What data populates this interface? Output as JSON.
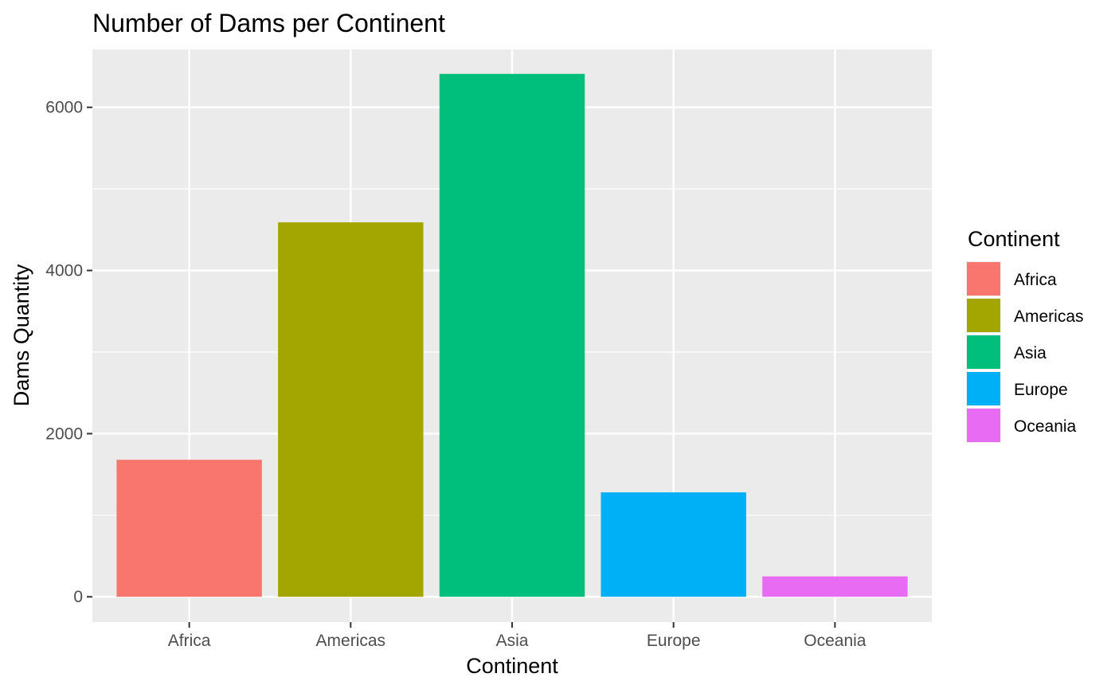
{
  "chart_data": {
    "type": "bar",
    "title": "Number of Dams per Continent",
    "xlabel": "Continent",
    "ylabel": "Dams Quantity",
    "categories": [
      "Africa",
      "Americas",
      "Asia",
      "Europe",
      "Oceania"
    ],
    "values": [
      1680,
      4590,
      6410,
      1280,
      250
    ],
    "colors": [
      "#F8766D",
      "#A3A500",
      "#00BF7D",
      "#00B0F6",
      "#E76BF3"
    ],
    "ylim": [
      -310,
      6710
    ],
    "yticks": [
      0,
      2000,
      4000,
      6000
    ],
    "ytick_labels": [
      "0",
      "2000",
      "4000",
      "6000"
    ],
    "grid": true,
    "legend": {
      "title": "Continent",
      "position": "right",
      "entries": [
        "Africa",
        "Americas",
        "Asia",
        "Europe",
        "Oceania"
      ]
    }
  }
}
